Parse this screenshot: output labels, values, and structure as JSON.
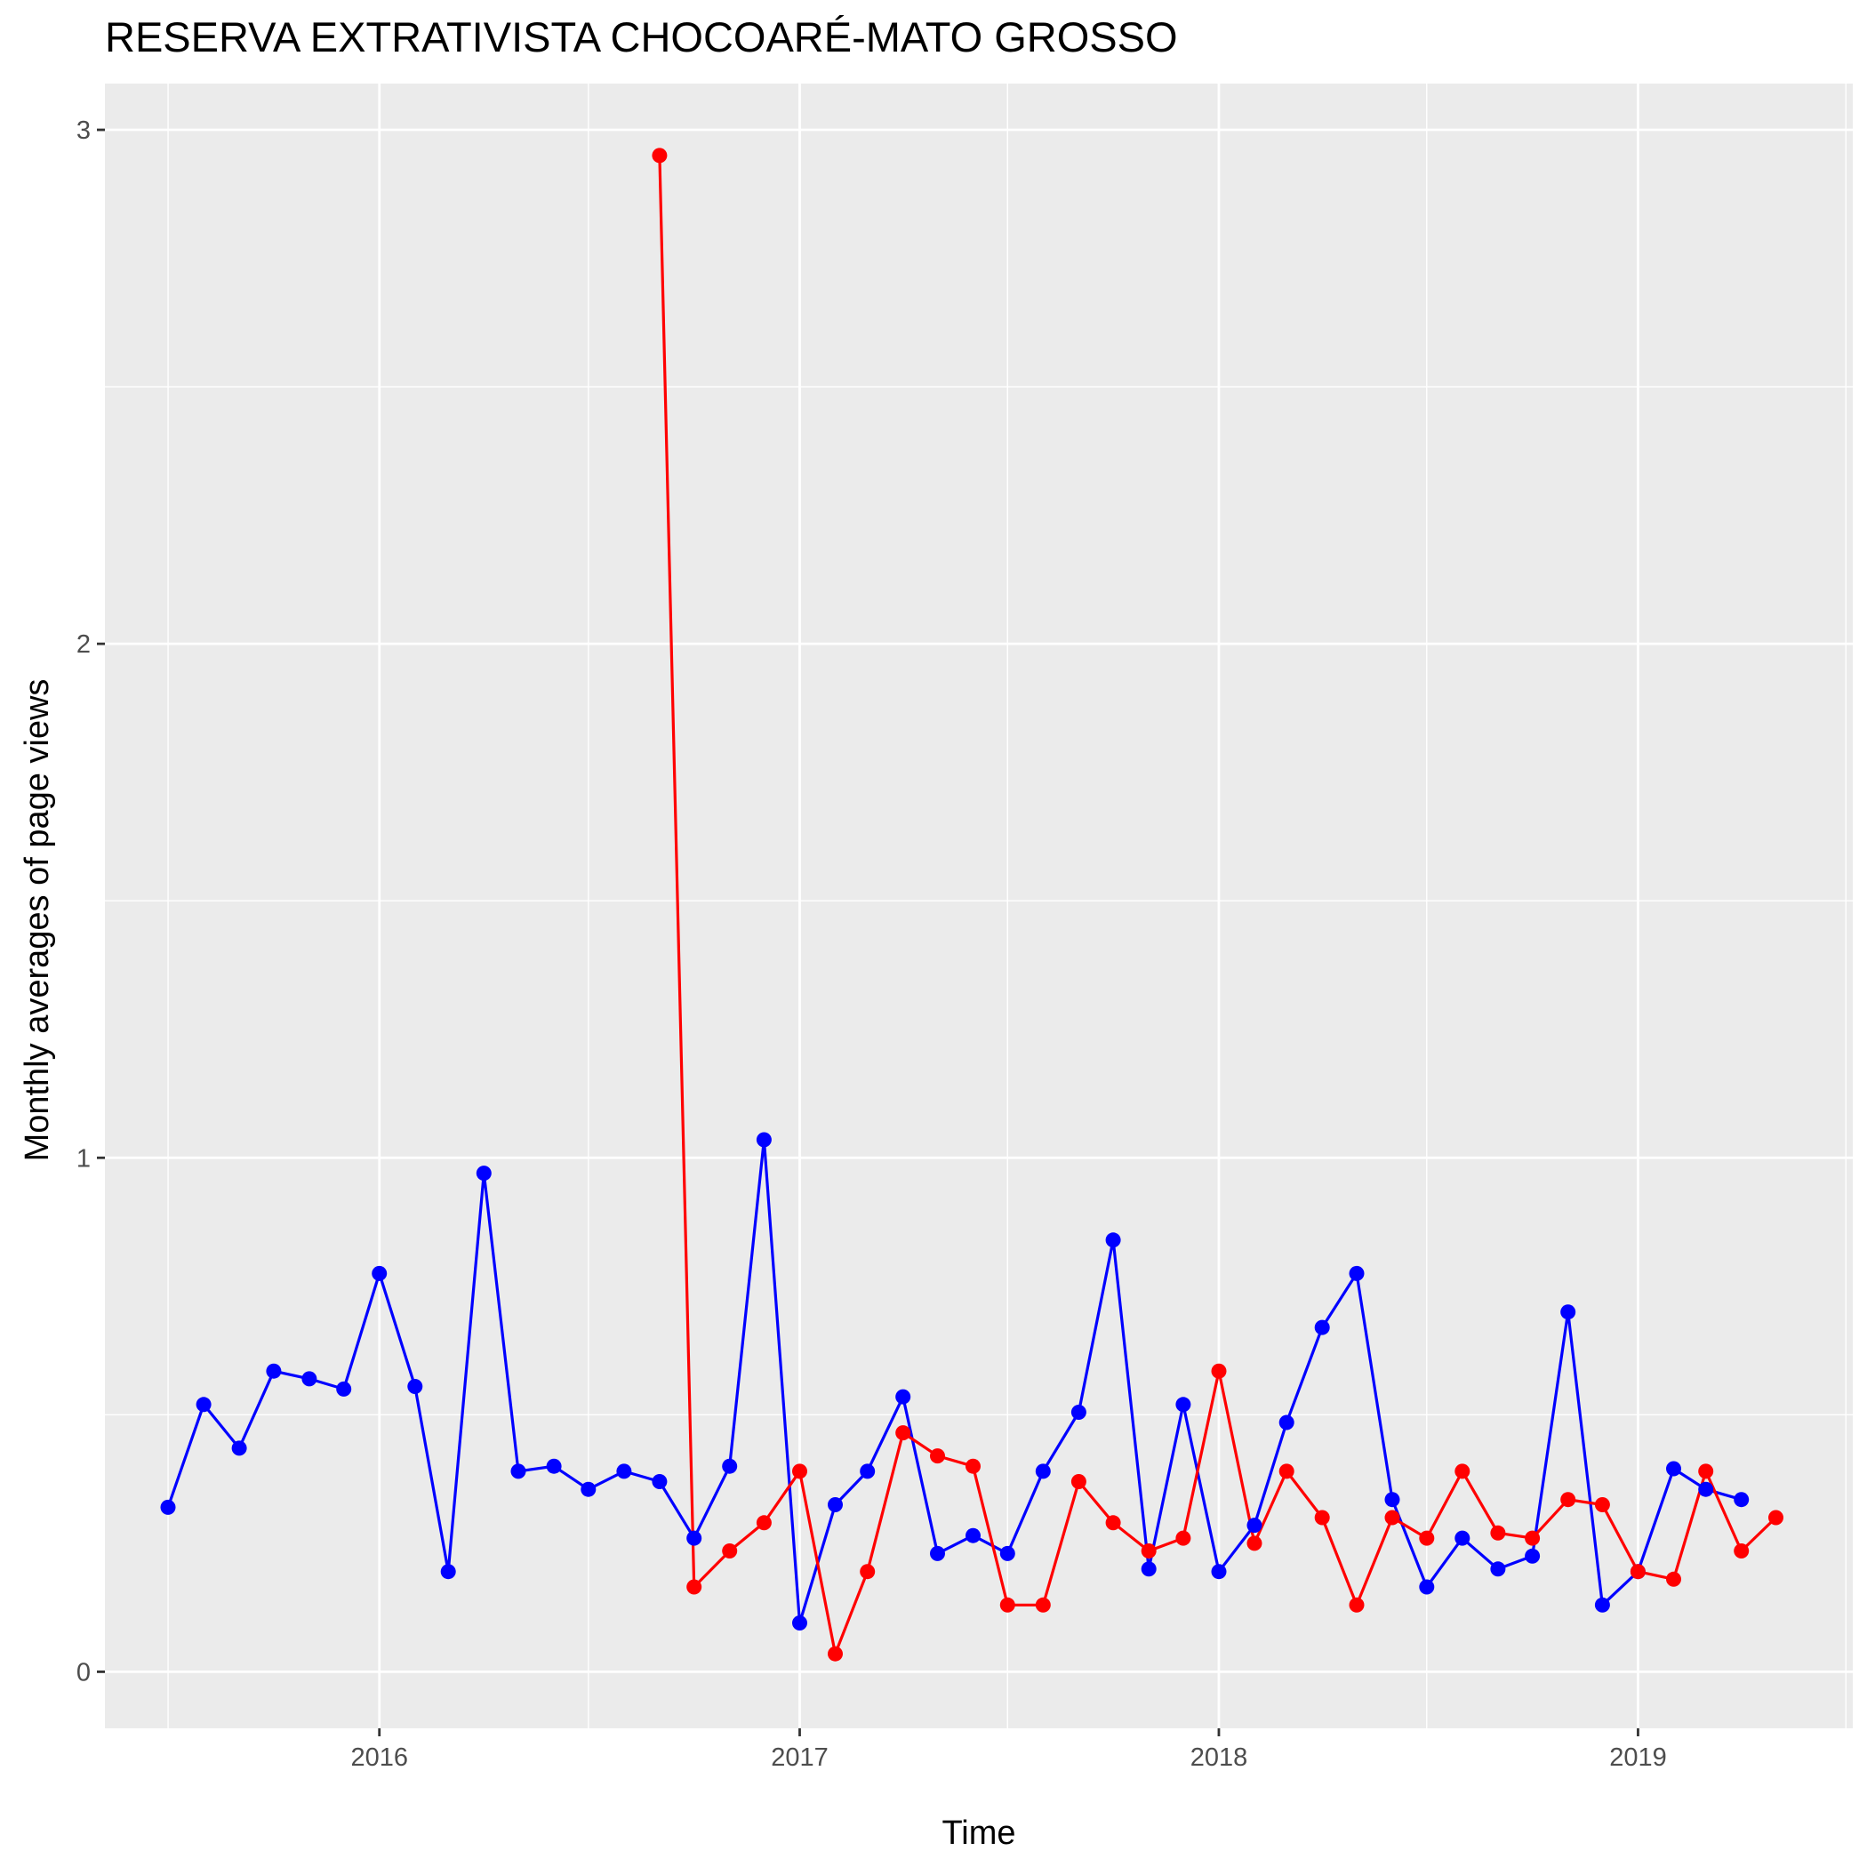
{
  "chart_data": {
    "type": "line",
    "title": "RESERVA EXTRATIVISTA CHOCOARÉ-MATO GROSSO",
    "xlabel": "Time",
    "ylabel": "Monthly averages of page views",
    "x_ticks": [
      "2016",
      "2017",
      "2018",
      "2019"
    ],
    "y_ticks": [
      "0",
      "1",
      "2",
      "3"
    ],
    "xlim": [
      "2015-05-07",
      "2019-07-07"
    ],
    "ylim": [
      -0.11,
      3.09
    ],
    "grid": true,
    "legend": "none",
    "series": [
      {
        "color": "#0000ff",
        "points": [
          [
            "2015-07-01",
            0.32
          ],
          [
            "2015-08-01",
            0.52
          ],
          [
            "2015-09-01",
            0.435
          ],
          [
            "2015-10-01",
            0.585
          ],
          [
            "2015-11-01",
            0.57
          ],
          [
            "2015-12-01",
            0.55
          ],
          [
            "2016-01-01",
            0.775
          ],
          [
            "2016-02-01",
            0.555
          ],
          [
            "2016-03-01",
            0.195
          ],
          [
            "2016-04-01",
            0.97
          ],
          [
            "2016-05-01",
            0.39
          ],
          [
            "2016-06-01",
            0.4
          ],
          [
            "2016-07-01",
            0.355
          ],
          [
            "2016-08-01",
            0.39
          ],
          [
            "2016-09-01",
            0.37
          ],
          [
            "2016-10-01",
            0.26
          ],
          [
            "2016-11-01",
            0.4
          ],
          [
            "2016-12-01",
            1.035
          ],
          [
            "2017-01-01",
            0.095
          ],
          [
            "2017-02-01",
            0.325
          ],
          [
            "2017-03-01",
            0.39
          ],
          [
            "2017-04-01",
            0.535
          ],
          [
            "2017-05-01",
            0.23
          ],
          [
            "2017-06-01",
            0.265
          ],
          [
            "2017-07-01",
            0.23
          ],
          [
            "2017-08-01",
            0.39
          ],
          [
            "2017-09-01",
            0.505
          ],
          [
            "2017-10-01",
            0.84
          ],
          [
            "2017-11-01",
            0.2
          ],
          [
            "2017-12-01",
            0.52
          ],
          [
            "2018-01-01",
            0.195
          ],
          [
            "2018-02-01",
            0.285
          ],
          [
            "2018-03-01",
            0.485
          ],
          [
            "2018-04-01",
            0.67
          ],
          [
            "2018-05-01",
            0.775
          ],
          [
            "2018-06-01",
            0.335
          ],
          [
            "2018-07-01",
            0.165
          ],
          [
            "2018-08-01",
            0.26
          ],
          [
            "2018-09-01",
            0.2
          ],
          [
            "2018-10-01",
            0.225
          ],
          [
            "2018-11-01",
            0.7
          ],
          [
            "2018-12-01",
            0.13
          ],
          [
            "2019-01-01",
            0.195
          ],
          [
            "2019-02-01",
            0.395
          ],
          [
            "2019-03-01",
            0.355
          ],
          [
            "2019-04-01",
            0.335
          ]
        ]
      },
      {
        "color": "#ff0000",
        "points": [
          [
            "2016-09-01",
            2.95
          ],
          [
            "2016-10-01",
            0.165
          ],
          [
            "2016-11-01",
            0.235
          ],
          [
            "2016-12-01",
            0.29
          ],
          [
            "2017-01-01",
            0.39
          ],
          [
            "2017-02-01",
            0.035
          ],
          [
            "2017-03-01",
            0.195
          ],
          [
            "2017-04-01",
            0.465
          ],
          [
            "2017-05-01",
            0.42
          ],
          [
            "2017-06-01",
            0.4
          ],
          [
            "2017-07-01",
            0.13
          ],
          [
            "2017-08-01",
            0.13
          ],
          [
            "2017-09-01",
            0.37
          ],
          [
            "2017-10-01",
            0.29
          ],
          [
            "2017-11-01",
            0.235
          ],
          [
            "2017-12-01",
            0.26
          ],
          [
            "2018-01-01",
            0.585
          ],
          [
            "2018-02-01",
            0.25
          ],
          [
            "2018-03-01",
            0.39
          ],
          [
            "2018-04-01",
            0.3
          ],
          [
            "2018-05-01",
            0.13
          ],
          [
            "2018-06-01",
            0.3
          ],
          [
            "2018-07-01",
            0.26
          ],
          [
            "2018-08-01",
            0.39
          ],
          [
            "2018-09-01",
            0.27
          ],
          [
            "2018-10-01",
            0.26
          ],
          [
            "2018-11-01",
            0.335
          ],
          [
            "2018-12-01",
            0.325
          ],
          [
            "2019-01-01",
            0.195
          ],
          [
            "2019-02-01",
            0.18
          ],
          [
            "2019-03-01",
            0.39
          ],
          [
            "2019-04-01",
            0.235
          ],
          [
            "2019-05-01",
            0.3
          ]
        ]
      }
    ]
  }
}
